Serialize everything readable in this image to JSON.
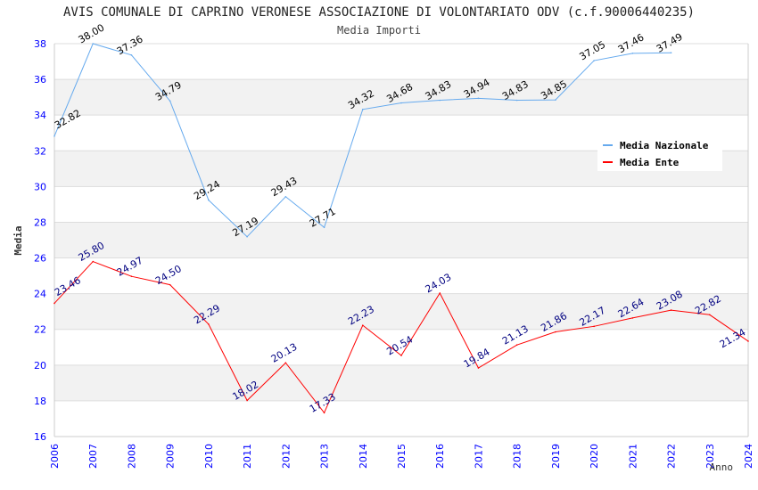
{
  "chart_data": {
    "type": "line",
    "title": "AVIS COMUNALE DI CAPRINO VERONESE ASSOCIAZIONE DI VOLONTARIATO ODV (c.f.90006440235)",
    "subtitle": "Media Importi",
    "xlabel": "Anno",
    "ylabel": "Media",
    "ylim": [
      16,
      38
    ],
    "yticks": [
      "16",
      "18",
      "20",
      "22",
      "24",
      "26",
      "28",
      "30",
      "32",
      "34",
      "36",
      "38"
    ],
    "x": [
      "2006",
      "2007",
      "2008",
      "2009",
      "2010",
      "2011",
      "2012",
      "2013",
      "2014",
      "2015",
      "2016",
      "2017",
      "2018",
      "2019",
      "2020",
      "2021",
      "2022",
      "2023",
      "2024"
    ],
    "legend_position": "top-right",
    "series": [
      {
        "name": "Media Nazionale",
        "color": "#66aaee",
        "label_color": "#000000",
        "values": [
          32.82,
          38.0,
          37.36,
          34.79,
          29.24,
          27.19,
          29.43,
          27.71,
          34.32,
          34.68,
          34.83,
          34.94,
          34.83,
          34.85,
          37.05,
          37.46,
          37.49,
          null,
          null
        ],
        "labels": [
          "32.82",
          "38.00",
          "37.36",
          "34.79",
          "29.24",
          "27.19",
          "29.43",
          "27.71",
          "34.32",
          "34.68",
          "34.83",
          "34.94",
          "34.83",
          "34.85",
          "37.05",
          "37.46",
          "37.49",
          "",
          ""
        ]
      },
      {
        "name": "Media Ente",
        "color": "#ff0000",
        "label_color": "#000080",
        "values": [
          23.46,
          25.8,
          24.97,
          24.5,
          22.29,
          18.02,
          20.13,
          17.33,
          22.23,
          20.54,
          24.03,
          19.84,
          21.13,
          21.86,
          22.17,
          22.64,
          23.08,
          22.82,
          21.34
        ],
        "labels": [
          "23.46",
          "25.80",
          "24.97",
          "24.50",
          "22.29",
          "18.02",
          "20.13",
          "17.33",
          "22.23",
          "20.54",
          "24.03",
          "19.84",
          "21.13",
          "21.86",
          "22.17",
          "22.64",
          "23.08",
          "22.82",
          "21.34"
        ]
      }
    ]
  }
}
